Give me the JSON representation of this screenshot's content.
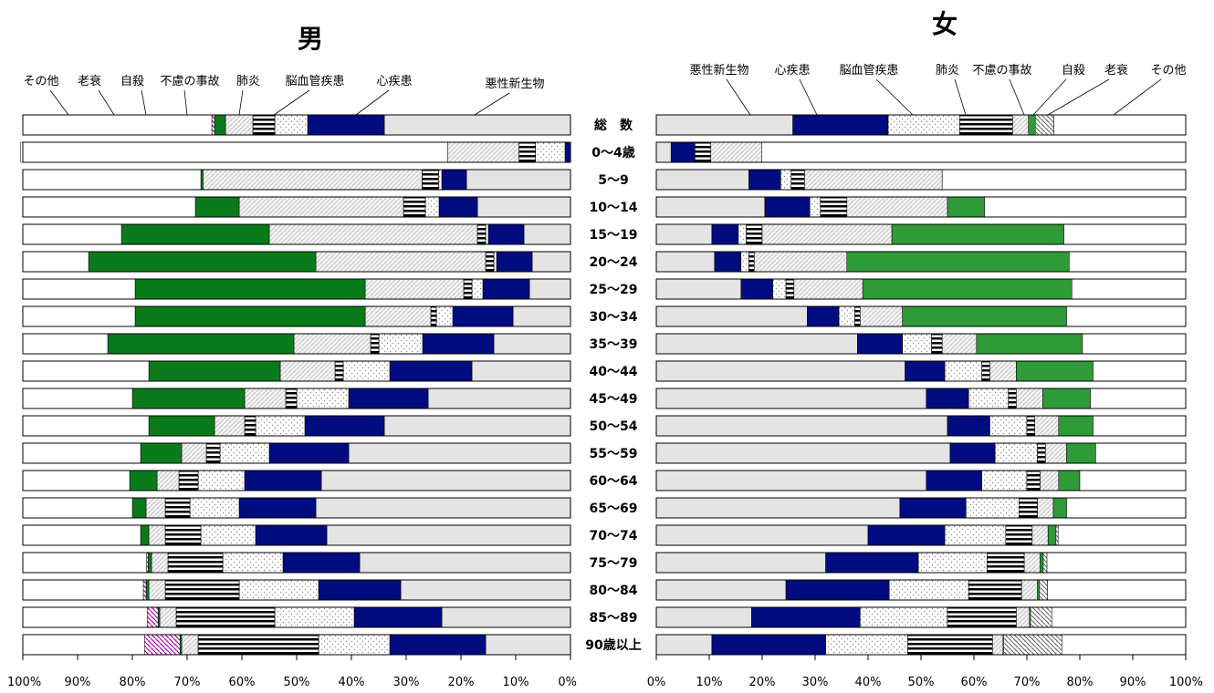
{
  "chart_data": [
    {
      "type": "bar",
      "stacked": true,
      "title": "男",
      "x_axis": {
        "direction": "reversed",
        "range": [
          0,
          100
        ],
        "ticks": [
          "100%",
          "90%",
          "80%",
          "70%",
          "60%",
          "50%",
          "40%",
          "30%",
          "20%",
          "10%",
          "0%"
        ]
      },
      "stack_order": [
        "悪性新生物",
        "心疾患",
        "脳血管疾患",
        "肺炎",
        "不慮の事故",
        "自殺",
        "老衰",
        "その他"
      ],
      "legend_labels": [
        "その他",
        "老衰",
        "自殺",
        "不慮の事故",
        "肺炎",
        "脳血管疾患",
        "心疾患",
        "悪性新生物"
      ],
      "colors": {
        "悪性新生物": "#e4e4e4",
        "心疾患": "#000c80",
        "脳血管疾患": "#dotted",
        "肺炎": "#hstripe",
        "不慮の事故": "#diag",
        "自殺": "#0a7a1a",
        "老衰": "#diagmagenta",
        "その他": "#ffffff"
      },
      "rows": [
        {
          "label": "総　数",
          "values": [
            34,
            14,
            6,
            4,
            5,
            2,
            0.5,
            34.5
          ]
        },
        {
          "label": "0～4歳",
          "values": [
            0,
            1,
            5.4,
            3,
            13,
            0,
            0,
            78
          ]
        },
        {
          "label": "5～9",
          "values": [
            19,
            4.5,
            0.6,
            3,
            40,
            0.4,
            0,
            32.5
          ]
        },
        {
          "label": "10～14",
          "values": [
            17,
            7,
            2.5,
            4,
            30,
            8,
            0,
            31.5
          ]
        },
        {
          "label": "15～19",
          "values": [
            8.5,
            6.5,
            0.5,
            1.5,
            38,
            27,
            0,
            18
          ]
        },
        {
          "label": "20～24",
          "values": [
            7,
            6.5,
            0.5,
            1.5,
            31,
            41.5,
            0,
            12
          ]
        },
        {
          "label": "25～29",
          "values": [
            7.5,
            8.5,
            2,
            1.5,
            18,
            42,
            0,
            20.5
          ]
        },
        {
          "label": "30～34",
          "values": [
            10.5,
            11,
            3,
            1,
            12,
            42,
            0,
            20.5
          ]
        },
        {
          "label": "35～39",
          "values": [
            14,
            13,
            8,
            1.5,
            14,
            34,
            0,
            15.5
          ]
        },
        {
          "label": "40～44",
          "values": [
            18,
            15,
            8.5,
            1.5,
            10,
            24,
            0,
            23
          ]
        },
        {
          "label": "45～49",
          "values": [
            26,
            14.5,
            9.5,
            2,
            7.5,
            20.5,
            0,
            20
          ]
        },
        {
          "label": "50～54",
          "values": [
            34,
            14.5,
            9,
            2,
            5.5,
            12,
            0,
            23
          ]
        },
        {
          "label": "55～59",
          "values": [
            40.5,
            14.5,
            9,
            2.5,
            4.5,
            7.5,
            0,
            21.5
          ]
        },
        {
          "label": "60～64",
          "values": [
            45.5,
            14,
            8.5,
            3.5,
            4,
            5,
            0,
            19.5
          ]
        },
        {
          "label": "65～69",
          "values": [
            46.5,
            14,
            9,
            4.5,
            3.5,
            2.5,
            0,
            20
          ]
        },
        {
          "label": "70～74",
          "values": [
            44.5,
            13,
            10,
            6.5,
            3,
            1.5,
            0,
            21.5
          ]
        },
        {
          "label": "75～79",
          "values": [
            38.5,
            14,
            11,
            10,
            3,
            0.6,
            0.3,
            22.6
          ]
        },
        {
          "label": "80～84",
          "values": [
            31,
            15,
            14.5,
            13.5,
            3,
            0.5,
            0.5,
            22
          ]
        },
        {
          "label": "85～89",
          "values": [
            23.5,
            16,
            14.5,
            18,
            3,
            0.3,
            2,
            22.7
          ]
        },
        {
          "label": "90歳以上",
          "values": [
            15.5,
            17.5,
            13,
            22,
            3,
            0.3,
            6.5,
            22.2
          ]
        }
      ]
    },
    {
      "type": "bar",
      "stacked": true,
      "title": "女",
      "x_axis": {
        "direction": "normal",
        "range": [
          0,
          100
        ],
        "ticks": [
          "0%",
          "10%",
          "20%",
          "30%",
          "40%",
          "50%",
          "60%",
          "70%",
          "80%",
          "90%",
          "100%"
        ]
      },
      "stack_order": [
        "悪性新生物",
        "心疾患",
        "脳血管疾患",
        "肺炎",
        "不慮の事故",
        "自殺",
        "老衰",
        "その他"
      ],
      "legend_labels": [
        "悪性新生物",
        "心疾患",
        "脳血管疾患",
        "肺炎",
        "不慮の事故",
        "自殺",
        "老衰",
        "その他"
      ],
      "rows": [
        {
          "label": "総　数",
          "values": [
            25.8,
            18,
            13.5,
            10,
            3,
            1.3,
            3.5,
            24.9
          ]
        },
        {
          "label": "0～4歳",
          "values": [
            2.8,
            4.5,
            0,
            3,
            9.6,
            0,
            0,
            80.1
          ]
        },
        {
          "label": "5～9",
          "values": [
            17.5,
            6,
            2,
            2.5,
            26,
            0,
            0,
            46
          ]
        },
        {
          "label": "10～14",
          "values": [
            20.5,
            8.5,
            2,
            5,
            19,
            7,
            0,
            38
          ]
        },
        {
          "label": "15～19",
          "values": [
            10.5,
            5,
            1.5,
            3,
            24.5,
            32.5,
            0,
            23
          ]
        },
        {
          "label": "20～24",
          "values": [
            11,
            5,
            1.5,
            1,
            17.5,
            42,
            0,
            22
          ]
        },
        {
          "label": "25～29",
          "values": [
            16,
            6,
            2.5,
            1.5,
            13,
            39.5,
            0,
            21.5
          ]
        },
        {
          "label": "30～34",
          "values": [
            28.5,
            6,
            3,
            1,
            8,
            31,
            0,
            22.5
          ]
        },
        {
          "label": "35～39",
          "values": [
            38,
            8.5,
            5.5,
            2,
            6.5,
            20,
            0,
            19.5
          ]
        },
        {
          "label": "40～44",
          "values": [
            47,
            7.5,
            7,
            1.5,
            5,
            14.5,
            0,
            17.5
          ]
        },
        {
          "label": "45～49",
          "values": [
            51,
            8,
            7.5,
            1.5,
            5,
            9,
            0,
            18
          ]
        },
        {
          "label": "50～54",
          "values": [
            55,
            8,
            7,
            1.5,
            4.5,
            6.5,
            0,
            17.5
          ]
        },
        {
          "label": "55～59",
          "values": [
            55.5,
            8.5,
            8,
            1.5,
            4,
            5.5,
            0,
            17
          ]
        },
        {
          "label": "60～64",
          "values": [
            51,
            10.5,
            8.5,
            2.5,
            3.5,
            4,
            0,
            20
          ]
        },
        {
          "label": "65～69",
          "values": [
            46,
            12.5,
            10,
            3.5,
            3,
            2.5,
            0,
            22.5
          ]
        },
        {
          "label": "70～74",
          "values": [
            40,
            14.5,
            11.5,
            5,
            3,
            1.5,
            0.4,
            24.1
          ]
        },
        {
          "label": "75～79",
          "values": [
            32,
            17.5,
            13,
            7,
            3,
            0.6,
            0.7,
            26.2
          ]
        },
        {
          "label": "80～84",
          "values": [
            24.5,
            19.5,
            15,
            10,
            3,
            0.4,
            1.5,
            26.1
          ]
        },
        {
          "label": "85～89",
          "values": [
            18,
            20.5,
            16.5,
            13,
            2.5,
            0.2,
            4,
            25.3
          ]
        },
        {
          "label": "90歳以上",
          "values": [
            10.5,
            21.5,
            15.5,
            16,
            2,
            0.1,
            11,
            23.4
          ]
        }
      ]
    }
  ]
}
